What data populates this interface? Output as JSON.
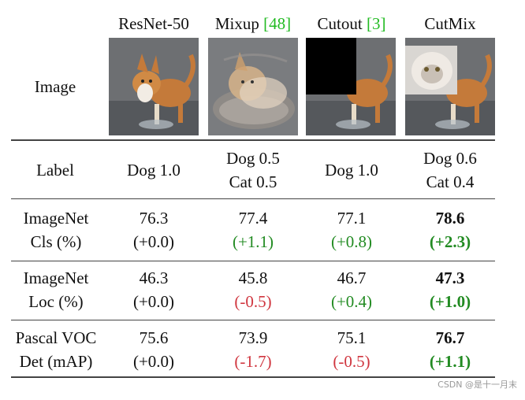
{
  "columns": {
    "row_header": "Image",
    "c1": "ResNet-50",
    "c2_name": "Mixup",
    "c2_cite": "[48]",
    "c3_name": "Cutout",
    "c3_cite": "[3]",
    "c4": "CutMix"
  },
  "images": {
    "c1": "dog-photo",
    "c2": "dog-cat-blend",
    "c3": "dog-with-black-box",
    "c4": "dog-with-cat-patch"
  },
  "label_row": {
    "header": "Label",
    "c1_l1": "Dog 1.0",
    "c2_l1": "Dog 0.5",
    "c2_l2": "Cat 0.5",
    "c3_l1": "Dog 1.0",
    "c4_l1": "Dog 0.6",
    "c4_l2": "Cat 0.4"
  },
  "rows": [
    {
      "h1": "ImageNet",
      "h2": "Cls (%)",
      "v": [
        "76.3",
        "77.4",
        "77.1",
        "78.6"
      ],
      "d": [
        "(+0.0)",
        "(+1.1)",
        "(+0.8)",
        "(+2.3)"
      ]
    },
    {
      "h1": "ImageNet",
      "h2": "Loc (%)",
      "v": [
        "46.3",
        "45.8",
        "46.7",
        "47.3"
      ],
      "d": [
        "(+0.0)",
        "(-0.5)",
        "(+0.4)",
        "(+1.0)"
      ]
    },
    {
      "h1": "Pascal VOC",
      "h2": "Det (mAP)",
      "v": [
        "75.6",
        "73.9",
        "75.1",
        "76.7"
      ],
      "d": [
        "(+0.0)",
        "(-1.7)",
        "(-0.5)",
        "(+1.1)"
      ]
    }
  ],
  "colors": {
    "positive": "#228b22",
    "negative": "#d0363f",
    "citation": "#22bb22"
  },
  "watermark": "CSDN @是十一月末"
}
